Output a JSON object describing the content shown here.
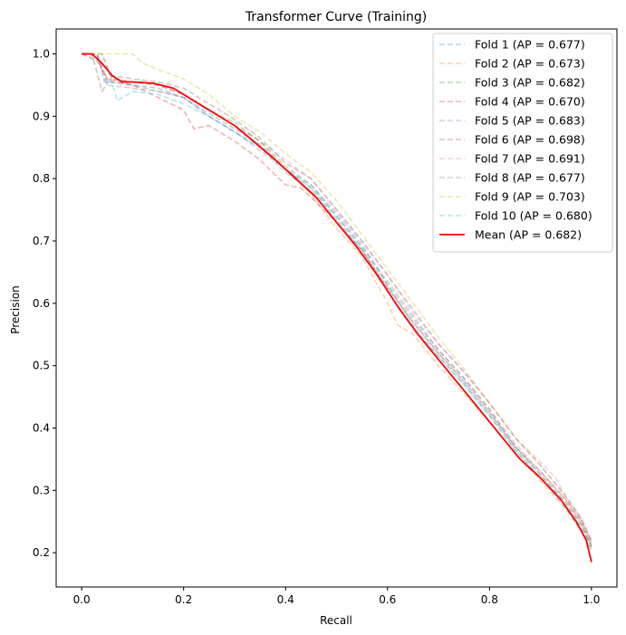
{
  "chart_data": {
    "type": "line",
    "title": "Transformer Curve (Training)",
    "xlabel": "Recall",
    "ylabel": "Precision",
    "xlim": [
      -0.05,
      1.05
    ],
    "ylim": [
      0.145,
      1.04
    ],
    "xticks": [
      0.0,
      0.2,
      0.4,
      0.6,
      0.8,
      1.0
    ],
    "xtick_labels": [
      "0.0",
      "0.2",
      "0.4",
      "0.6",
      "0.8",
      "1.0"
    ],
    "yticks": [
      0.2,
      0.3,
      0.4,
      0.5,
      0.6,
      0.7,
      0.8,
      0.9,
      1.0
    ],
    "ytick_labels": [
      "0.2",
      "0.3",
      "0.4",
      "0.5",
      "0.6",
      "0.7",
      "0.8",
      "0.9",
      "1.0"
    ],
    "grid": false,
    "legend_position": "upper right",
    "fold_style": {
      "dashed": true,
      "opacity": 0.35
    },
    "series": [
      {
        "name": "Fold 1 (AP = 0.677)",
        "color": "#1f77b4",
        "dashed": true,
        "x": [
          0,
          0.03,
          0.045,
          0.06,
          0.1,
          0.15,
          0.2,
          0.25,
          0.3,
          0.35,
          0.4,
          0.45,
          0.5,
          0.55,
          0.6,
          0.65,
          0.7,
          0.75,
          0.8,
          0.85,
          0.9,
          0.95,
          0.98,
          1.0
        ],
        "y": [
          1.0,
          1.0,
          0.955,
          0.955,
          0.95,
          0.945,
          0.93,
          0.905,
          0.88,
          0.855,
          0.815,
          0.785,
          0.735,
          0.685,
          0.62,
          0.56,
          0.515,
          0.47,
          0.42,
          0.365,
          0.32,
          0.275,
          0.24,
          0.21
        ]
      },
      {
        "name": "Fold 2 (AP = 0.673)",
        "color": "#ff7f0e",
        "dashed": true,
        "x": [
          0,
          0.03,
          0.05,
          0.1,
          0.15,
          0.2,
          0.25,
          0.3,
          0.35,
          0.4,
          0.45,
          0.5,
          0.55,
          0.6,
          0.62,
          0.65,
          0.7,
          0.75,
          0.8,
          0.85,
          0.9,
          0.95,
          0.98,
          1.0
        ],
        "y": [
          1.0,
          1.0,
          0.96,
          0.955,
          0.95,
          0.935,
          0.91,
          0.885,
          0.86,
          0.815,
          0.775,
          0.72,
          0.675,
          0.6,
          0.565,
          0.55,
          0.5,
          0.455,
          0.41,
          0.36,
          0.315,
          0.27,
          0.235,
          0.205
        ]
      },
      {
        "name": "Fold 3 (AP = 0.682)",
        "color": "#2ca02c",
        "dashed": true,
        "x": [
          0,
          0.04,
          0.06,
          0.1,
          0.15,
          0.2,
          0.25,
          0.3,
          0.35,
          0.4,
          0.45,
          0.5,
          0.55,
          0.6,
          0.65,
          0.7,
          0.75,
          0.8,
          0.85,
          0.9,
          0.95,
          0.98,
          1.0
        ],
        "y": [
          1.0,
          1.0,
          0.96,
          0.955,
          0.95,
          0.935,
          0.91,
          0.89,
          0.86,
          0.82,
          0.79,
          0.74,
          0.69,
          0.635,
          0.58,
          0.525,
          0.48,
          0.43,
          0.37,
          0.325,
          0.28,
          0.245,
          0.21
        ]
      },
      {
        "name": "Fold 4 (AP = 0.670)",
        "color": "#d62728",
        "dashed": true,
        "x": [
          0,
          0.03,
          0.05,
          0.1,
          0.15,
          0.2,
          0.22,
          0.25,
          0.3,
          0.35,
          0.4,
          0.43,
          0.45,
          0.5,
          0.55,
          0.6,
          0.65,
          0.7,
          0.75,
          0.8,
          0.85,
          0.9,
          0.95,
          0.98,
          1.0
        ],
        "y": [
          1.0,
          0.99,
          0.96,
          0.95,
          0.93,
          0.91,
          0.88,
          0.885,
          0.86,
          0.83,
          0.79,
          0.785,
          0.77,
          0.73,
          0.685,
          0.625,
          0.57,
          0.52,
          0.475,
          0.425,
          0.37,
          0.33,
          0.285,
          0.25,
          0.215
        ]
      },
      {
        "name": "Fold 5 (AP = 0.683)",
        "color": "#9467bd",
        "dashed": true,
        "x": [
          0,
          0.03,
          0.05,
          0.1,
          0.15,
          0.2,
          0.25,
          0.3,
          0.35,
          0.4,
          0.45,
          0.5,
          0.55,
          0.6,
          0.65,
          0.7,
          0.75,
          0.8,
          0.85,
          0.9,
          0.95,
          0.98,
          1.0
        ],
        "y": [
          1.0,
          1.0,
          0.955,
          0.95,
          0.94,
          0.93,
          0.9,
          0.875,
          0.845,
          0.815,
          0.79,
          0.745,
          0.695,
          0.63,
          0.575,
          0.525,
          0.48,
          0.43,
          0.375,
          0.33,
          0.285,
          0.25,
          0.215
        ]
      },
      {
        "name": "Fold 6 (AP = 0.698)",
        "color": "#8c564b",
        "dashed": true,
        "x": [
          0,
          0.02,
          0.04,
          0.06,
          0.1,
          0.15,
          0.2,
          0.25,
          0.3,
          0.35,
          0.4,
          0.45,
          0.5,
          0.55,
          0.6,
          0.65,
          0.7,
          0.75,
          0.8,
          0.85,
          0.9,
          0.95,
          0.98,
          1.0
        ],
        "y": [
          1.0,
          1.0,
          0.94,
          0.965,
          0.96,
          0.955,
          0.945,
          0.92,
          0.895,
          0.865,
          0.825,
          0.8,
          0.75,
          0.7,
          0.645,
          0.59,
          0.535,
          0.49,
          0.44,
          0.385,
          0.34,
          0.29,
          0.255,
          0.22
        ]
      },
      {
        "name": "Fold 7 (AP = 0.691)",
        "color": "#e377c2",
        "dashed": true,
        "x": [
          0,
          0.04,
          0.06,
          0.1,
          0.15,
          0.2,
          0.25,
          0.3,
          0.35,
          0.4,
          0.45,
          0.5,
          0.55,
          0.6,
          0.65,
          0.7,
          0.75,
          0.8,
          0.85,
          0.9,
          0.93,
          0.95,
          0.98,
          1.0
        ],
        "y": [
          1.0,
          1.0,
          0.96,
          0.955,
          0.95,
          0.935,
          0.91,
          0.885,
          0.86,
          0.83,
          0.8,
          0.75,
          0.7,
          0.645,
          0.585,
          0.535,
          0.49,
          0.44,
          0.385,
          0.345,
          0.32,
          0.29,
          0.255,
          0.22
        ]
      },
      {
        "name": "Fold 8 (AP = 0.677)",
        "color": "#7f7f7f",
        "dashed": true,
        "x": [
          0,
          0.03,
          0.05,
          0.1,
          0.15,
          0.2,
          0.25,
          0.3,
          0.35,
          0.4,
          0.45,
          0.5,
          0.55,
          0.6,
          0.65,
          0.7,
          0.75,
          0.8,
          0.85,
          0.9,
          0.95,
          0.98,
          1.0
        ],
        "y": [
          1.0,
          1.0,
          0.95,
          0.945,
          0.94,
          0.93,
          0.9,
          0.875,
          0.85,
          0.81,
          0.78,
          0.73,
          0.685,
          0.625,
          0.57,
          0.52,
          0.475,
          0.425,
          0.37,
          0.325,
          0.28,
          0.245,
          0.21
        ]
      },
      {
        "name": "Fold 9 (AP = 0.703)",
        "color": "#bcbd22",
        "dashed": true,
        "x": [
          0,
          0.05,
          0.1,
          0.12,
          0.15,
          0.2,
          0.25,
          0.3,
          0.35,
          0.4,
          0.45,
          0.5,
          0.55,
          0.6,
          0.65,
          0.7,
          0.75,
          0.8,
          0.85,
          0.9,
          0.95,
          0.98,
          1.0
        ],
        "y": [
          1.0,
          1.0,
          1.0,
          0.985,
          0.975,
          0.96,
          0.935,
          0.9,
          0.875,
          0.84,
          0.81,
          0.765,
          0.71,
          0.655,
          0.6,
          0.545,
          0.495,
          0.44,
          0.385,
          0.34,
          0.29,
          0.255,
          0.215
        ]
      },
      {
        "name": "Fold 10 (AP = 0.680)",
        "color": "#17becf",
        "dashed": true,
        "x": [
          0,
          0.05,
          0.07,
          0.1,
          0.15,
          0.2,
          0.25,
          0.3,
          0.35,
          0.4,
          0.45,
          0.5,
          0.55,
          0.6,
          0.65,
          0.7,
          0.75,
          0.8,
          0.85,
          0.9,
          0.95,
          0.98,
          1.0
        ],
        "y": [
          1.0,
          0.98,
          0.925,
          0.94,
          0.935,
          0.92,
          0.9,
          0.875,
          0.85,
          0.815,
          0.785,
          0.74,
          0.69,
          0.63,
          0.565,
          0.515,
          0.47,
          0.42,
          0.365,
          0.32,
          0.27,
          0.235,
          0.205
        ]
      },
      {
        "name": "Mean (AP = 0.682)",
        "color": "#ff0000",
        "dashed": false,
        "x": [
          0,
          0.02,
          0.04,
          0.06,
          0.08,
          0.1,
          0.14,
          0.18,
          0.22,
          0.26,
          0.3,
          0.34,
          0.38,
          0.42,
          0.46,
          0.5,
          0.54,
          0.58,
          0.62,
          0.66,
          0.7,
          0.74,
          0.78,
          0.82,
          0.86,
          0.9,
          0.94,
          0.97,
          0.99,
          1.0
        ],
        "y": [
          1.0,
          1.0,
          0.985,
          0.965,
          0.955,
          0.955,
          0.953,
          0.945,
          0.925,
          0.905,
          0.885,
          0.858,
          0.83,
          0.8,
          0.77,
          0.73,
          0.69,
          0.645,
          0.595,
          0.55,
          0.51,
          0.47,
          0.43,
          0.39,
          0.35,
          0.32,
          0.285,
          0.25,
          0.22,
          0.185
        ]
      }
    ]
  }
}
